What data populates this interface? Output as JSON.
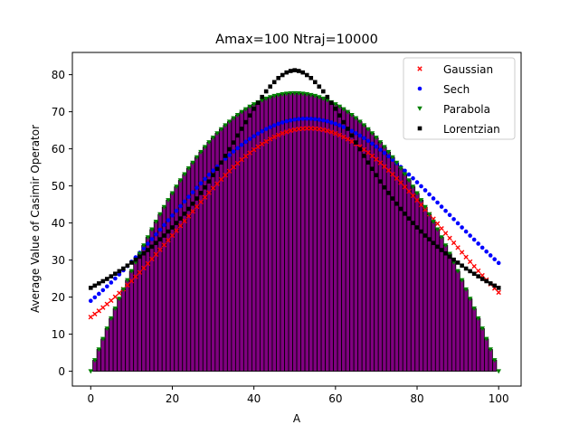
{
  "chart_data": {
    "type": "bar",
    "title": "Amax=100 Ntraj=10000",
    "xlabel": "A",
    "ylabel": "Average Value of Casimir Operator",
    "xlim": [
      -4.5,
      105.5
    ],
    "ylim": [
      -4,
      86
    ],
    "xticks": [
      0,
      20,
      40,
      60,
      80,
      100
    ],
    "yticks": [
      0,
      10,
      20,
      30,
      40,
      50,
      60,
      70,
      80
    ],
    "xtick_labels": [
      "0",
      "20",
      "40",
      "60",
      "80",
      "100"
    ],
    "ytick_labels": [
      "0",
      "10",
      "20",
      "30",
      "40",
      "50",
      "60",
      "70",
      "80"
    ],
    "legend_position": "top-right",
    "bar_color": "#800080",
    "bar_edge_color": "#000000",
    "x_min": 0,
    "x_max": 100,
    "bar_values": [
      0.0,
      2.97,
      5.88,
      8.73,
      11.52,
      14.25,
      16.92,
      19.53,
      22.08,
      24.57,
      27.0,
      29.37,
      31.68,
      33.93,
      36.12,
      38.25,
      40.32,
      42.33,
      44.28,
      46.17,
      48.0,
      49.77,
      51.48,
      53.13,
      54.72,
      56.25,
      57.72,
      59.13,
      60.48,
      61.77,
      63.0,
      64.17,
      65.28,
      66.33,
      67.32,
      68.25,
      69.12,
      69.93,
      70.68,
      71.37,
      72.0,
      72.57,
      73.08,
      73.53,
      73.92,
      74.25,
      74.52,
      74.73,
      74.88,
      74.97,
      75.0,
      74.97,
      74.88,
      74.73,
      74.52,
      74.25,
      73.92,
      73.53,
      73.08,
      72.57,
      72.0,
      71.37,
      70.68,
      69.93,
      69.12,
      68.25,
      67.32,
      66.33,
      65.28,
      64.17,
      63.0,
      61.77,
      60.48,
      59.13,
      57.72,
      56.25,
      54.72,
      53.13,
      51.48,
      49.77,
      48.0,
      46.17,
      44.28,
      42.33,
      40.32,
      38.25,
      36.12,
      33.93,
      31.68,
      29.37,
      27.0,
      24.57,
      22.08,
      19.53,
      16.92,
      14.25,
      11.52,
      8.73,
      5.88,
      2.97,
      0.0
    ],
    "series": [
      {
        "name": "Gaussian",
        "color": "#ff0000",
        "marker": "x",
        "values": [
          14.6,
          15.43,
          16.3,
          17.19,
          18.12,
          19.08,
          20.08,
          21.1,
          22.15,
          23.24,
          24.35,
          25.49,
          26.65,
          27.84,
          29.05,
          30.28,
          31.52,
          32.78,
          34.06,
          35.34,
          36.63,
          37.93,
          39.23,
          40.53,
          41.83,
          43.12,
          44.41,
          45.68,
          46.93,
          48.17,
          49.39,
          50.58,
          51.75,
          52.89,
          53.99,
          55.06,
          56.09,
          57.08,
          58.02,
          58.92,
          59.77,
          60.57,
          61.31,
          62.0,
          62.64,
          63.21,
          63.73,
          64.18,
          64.56,
          64.89,
          65.15,
          65.34,
          65.47,
          65.53,
          65.53,
          65.46,
          65.32,
          65.12,
          64.86,
          64.53,
          64.14,
          63.69,
          63.18,
          62.61,
          61.99,
          61.31,
          60.58,
          59.8,
          58.97,
          58.1,
          57.18,
          56.22,
          55.23,
          54.19,
          53.13,
          52.03,
          50.9,
          49.74,
          48.56,
          47.36,
          46.14,
          44.9,
          43.64,
          42.37,
          41.09,
          39.81,
          38.52,
          37.22,
          35.93,
          34.64,
          33.35,
          32.07,
          30.8,
          29.55,
          28.3,
          27.08,
          25.87,
          24.68,
          23.51,
          22.37,
          21.25
        ]
      },
      {
        "name": "Sech",
        "color": "#0000ff",
        "marker": "o",
        "values": [
          19.0,
          19.93,
          20.89,
          21.88,
          22.89,
          23.94,
          25.01,
          26.11,
          27.23,
          28.38,
          29.55,
          30.74,
          31.95,
          33.17,
          34.41,
          35.66,
          36.92,
          38.19,
          39.46,
          40.74,
          42.01,
          43.28,
          44.55,
          45.8,
          47.05,
          48.28,
          49.5,
          50.7,
          51.87,
          53.02,
          54.15,
          55.24,
          56.3,
          57.33,
          58.32,
          59.28,
          60.19,
          61.06,
          61.89,
          62.67,
          63.41,
          64.1,
          64.73,
          65.32,
          65.85,
          66.33,
          66.75,
          67.12,
          67.43,
          67.69,
          67.89,
          68.03,
          68.11,
          68.13,
          68.1,
          68.01,
          67.87,
          67.67,
          67.42,
          67.11,
          66.75,
          66.34,
          65.88,
          65.37,
          64.82,
          64.22,
          63.57,
          62.89,
          62.16,
          61.39,
          60.59,
          59.75,
          58.88,
          57.98,
          57.05,
          56.09,
          55.11,
          54.11,
          53.08,
          52.04,
          50.98,
          49.91,
          48.82,
          47.72,
          46.62,
          45.51,
          44.39,
          43.27,
          42.15,
          41.03,
          39.91,
          38.8,
          37.69,
          36.59,
          35.5,
          34.42,
          33.35,
          32.29,
          31.25,
          30.22,
          29.21
        ]
      },
      {
        "name": "Parabola",
        "color": "#008000",
        "marker": "v",
        "values": [
          0.0,
          2.97,
          5.88,
          8.73,
          11.52,
          14.25,
          16.92,
          19.53,
          22.08,
          24.57,
          27.0,
          29.37,
          31.68,
          33.93,
          36.12,
          38.25,
          40.32,
          42.33,
          44.28,
          46.17,
          48.0,
          49.77,
          51.48,
          53.13,
          54.72,
          56.25,
          57.72,
          59.13,
          60.48,
          61.77,
          63.0,
          64.17,
          65.28,
          66.33,
          67.32,
          68.25,
          69.12,
          69.93,
          70.68,
          71.37,
          72.0,
          72.57,
          73.08,
          73.53,
          73.92,
          74.25,
          74.52,
          74.73,
          74.88,
          74.97,
          75.0,
          74.97,
          74.88,
          74.73,
          74.52,
          74.25,
          73.92,
          73.53,
          73.08,
          72.57,
          72.0,
          71.37,
          70.68,
          69.93,
          69.12,
          68.25,
          67.32,
          66.33,
          65.28,
          64.17,
          63.0,
          61.77,
          60.48,
          59.13,
          57.72,
          56.25,
          54.72,
          53.13,
          51.48,
          49.77,
          48.0,
          46.17,
          44.28,
          42.33,
          40.32,
          38.25,
          36.12,
          33.93,
          31.68,
          29.37,
          27.0,
          24.57,
          22.08,
          19.53,
          16.92,
          14.25,
          11.52,
          8.73,
          5.88,
          2.97,
          0.0
        ]
      },
      {
        "name": "Lorentzian",
        "color": "#000000",
        "marker": "s",
        "values": [
          22.5,
          23.1,
          23.7,
          24.3,
          24.9,
          25.6,
          26.3,
          27.0,
          27.7,
          28.5,
          29.3,
          30.1,
          30.9,
          31.8,
          32.7,
          33.6,
          34.6,
          35.6,
          36.6,
          37.7,
          38.8,
          40.0,
          41.2,
          42.5,
          43.8,
          45.2,
          46.6,
          48.1,
          49.6,
          51.2,
          52.9,
          54.6,
          56.3,
          58.1,
          59.9,
          61.7,
          63.6,
          65.4,
          67.2,
          69.0,
          70.8,
          72.4,
          74.0,
          75.5,
          76.8,
          78.0,
          79.1,
          79.9,
          80.6,
          81.0,
          81.2,
          81.0,
          80.6,
          79.9,
          79.1,
          78.0,
          76.8,
          75.5,
          74.0,
          72.4,
          70.8,
          69.0,
          67.2,
          65.4,
          63.6,
          61.7,
          59.9,
          58.1,
          56.3,
          54.6,
          52.9,
          51.2,
          49.6,
          48.1,
          46.6,
          45.2,
          43.8,
          42.5,
          41.2,
          40.0,
          38.8,
          37.7,
          36.6,
          35.6,
          34.6,
          33.6,
          32.7,
          31.8,
          30.9,
          30.1,
          29.3,
          28.5,
          27.7,
          27.0,
          26.3,
          25.6,
          24.9,
          24.3,
          23.7,
          23.1,
          22.5
        ]
      }
    ]
  }
}
